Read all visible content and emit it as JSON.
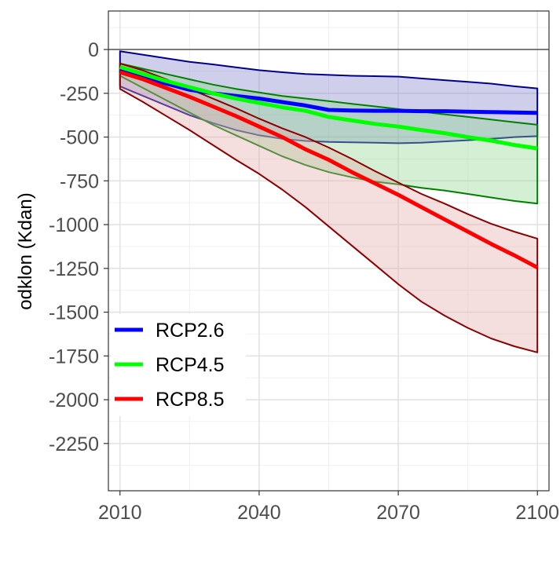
{
  "chart_data": {
    "type": "area",
    "title": "",
    "xlabel": "",
    "ylabel": "odklon (Kdan)",
    "xlim": [
      2007.5,
      2102.5
    ],
    "ylim": [
      -2520,
      220
    ],
    "x_ticks": [
      2010,
      2040,
      2070,
      2100
    ],
    "x_tick_labels": [
      "2010",
      "2040",
      "2070",
      "2100"
    ],
    "x_minor_ticks": [
      2025,
      2055,
      2085
    ],
    "y_ticks": [
      0,
      -250,
      -500,
      -750,
      -1000,
      -1250,
      -1500,
      -1750,
      -2000,
      -2250
    ],
    "y_tick_labels": [
      "0",
      "-250",
      "-500",
      "-750",
      "-1000",
      "-1250",
      "-1500",
      "-1750",
      "-2000",
      "-2250"
    ],
    "y_minor_ticks": [
      125,
      -125,
      -375,
      -625,
      -875,
      -1125,
      -1375,
      -1625,
      -1875,
      -2125,
      -2375
    ],
    "hline": 0,
    "grid": true,
    "legend_position": "bottom-left",
    "series": [
      {
        "name": "RCP2.6",
        "line_color": "#0000ff",
        "band_fill": "#8080cc",
        "band_edge": "#00008b",
        "x": [
          2010,
          2015,
          2020,
          2025,
          2030,
          2035,
          2040,
          2045,
          2050,
          2055,
          2060,
          2065,
          2070,
          2075,
          2080,
          2085,
          2090,
          2095,
          2100
        ],
        "mean": [
          -120,
          -160,
          -195,
          -230,
          -250,
          -265,
          -280,
          -300,
          -320,
          -345,
          -348,
          -350,
          -350,
          -352,
          -352,
          -355,
          -357,
          -360,
          -362
        ],
        "upper": [
          -10,
          -30,
          -50,
          -70,
          -85,
          -102,
          -118,
          -130,
          -140,
          -145,
          -150,
          -152,
          -155,
          -165,
          -175,
          -185,
          -195,
          -210,
          -222
        ],
        "lower": [
          -210,
          -265,
          -320,
          -375,
          -420,
          -460,
          -490,
          -510,
          -522,
          -528,
          -530,
          -532,
          -535,
          -532,
          -525,
          -518,
          -510,
          -500,
          -495
        ]
      },
      {
        "name": "RCP4.5",
        "line_color": "#00ff00",
        "band_fill": "#8fd48f",
        "band_edge": "#008000",
        "x": [
          2010,
          2015,
          2020,
          2025,
          2030,
          2035,
          2040,
          2045,
          2050,
          2055,
          2060,
          2065,
          2070,
          2075,
          2080,
          2085,
          2090,
          2095,
          2100
        ],
        "mean": [
          -100,
          -140,
          -180,
          -215,
          -250,
          -280,
          -305,
          -330,
          -350,
          -385,
          -405,
          -425,
          -440,
          -460,
          -478,
          -500,
          -520,
          -545,
          -565
        ],
        "upper": [
          -80,
          -110,
          -140,
          -170,
          -200,
          -225,
          -245,
          -265,
          -280,
          -295,
          -310,
          -325,
          -340,
          -355,
          -370,
          -385,
          -400,
          -415,
          -430
        ],
        "lower": [
          -150,
          -220,
          -290,
          -360,
          -430,
          -490,
          -550,
          -610,
          -660,
          -700,
          -730,
          -755,
          -770,
          -790,
          -805,
          -825,
          -845,
          -865,
          -880
        ]
      },
      {
        "name": "RCP8.5",
        "line_color": "#ff0000",
        "band_fill": "#e6a8a8",
        "band_edge": "#8b0000",
        "x": [
          2010,
          2015,
          2020,
          2025,
          2030,
          2035,
          2040,
          2045,
          2050,
          2055,
          2060,
          2065,
          2070,
          2075,
          2080,
          2085,
          2090,
          2095,
          2100
        ],
        "mean": [
          -130,
          -170,
          -220,
          -270,
          -325,
          -380,
          -440,
          -500,
          -570,
          -630,
          -700,
          -765,
          -830,
          -900,
          -970,
          -1040,
          -1110,
          -1175,
          -1245
        ],
        "upper": [
          -80,
          -120,
          -170,
          -225,
          -280,
          -335,
          -395,
          -450,
          -500,
          -560,
          -625,
          -695,
          -760,
          -825,
          -880,
          -940,
          -995,
          -1040,
          -1080
        ],
        "lower": [
          -225,
          -300,
          -380,
          -460,
          -545,
          -630,
          -710,
          -800,
          -900,
          -1010,
          -1120,
          -1230,
          -1340,
          -1440,
          -1520,
          -1590,
          -1650,
          -1695,
          -1730
        ]
      }
    ]
  }
}
